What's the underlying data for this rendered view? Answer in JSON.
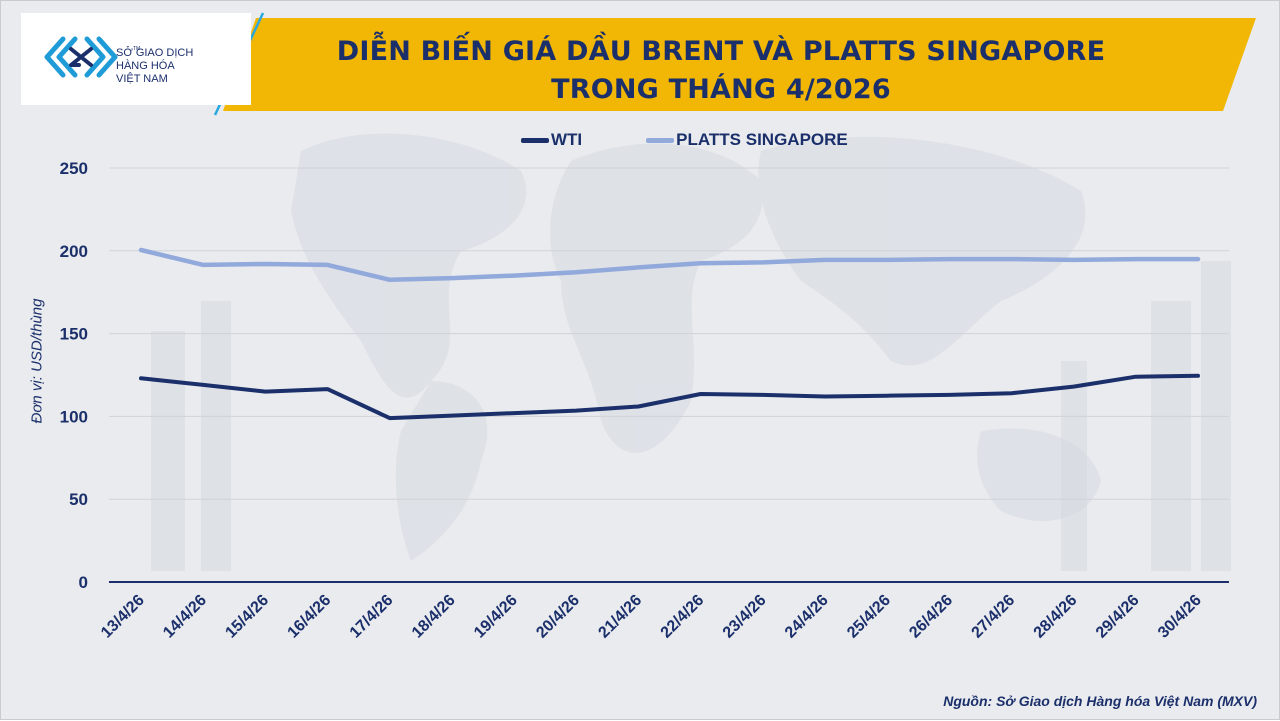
{
  "logo": {
    "line1": "SỞ GIAO DỊCH",
    "line2": "HÀNG HÓA",
    "line3": "VIỆT NAM",
    "tm": "TM"
  },
  "title": {
    "line1": "DIỄN BIẾN GIÁ DẦU BRENT VÀ PLATTS SINGAPORE",
    "line2": "TRONG THÁNG 4/2026"
  },
  "source": "Nguồn: Sở Giao dịch Hàng hóa Việt Nam (MXV)",
  "colors": {
    "banner": "#f2b705",
    "title": "#1b2f6b",
    "wti": "#1b2f6b",
    "platts": "#92a9dc",
    "axis": "#1b2f6b"
  },
  "chart_data": {
    "type": "line",
    "title": "DIỄN BIẾN GIÁ DẦU BRENT VÀ PLATTS SINGAPORE TRONG THÁNG 4/2026",
    "xlabel": "",
    "ylabel": "Đơn vị: USD/thùng",
    "ylim": [
      0,
      250
    ],
    "yticks": [
      0,
      50,
      100,
      150,
      200,
      250
    ],
    "grid": true,
    "legend_position": "top",
    "categories": [
      "13/4/26",
      "14/4/26",
      "15/4/26",
      "16/4/26",
      "17/4/26",
      "18/4/26",
      "19/4/26",
      "20/4/26",
      "21/4/26",
      "22/4/26",
      "23/4/26",
      "24/4/26",
      "25/4/26",
      "26/4/26",
      "27/4/26",
      "28/4/26",
      "29/4/26",
      "30/4/26"
    ],
    "series": [
      {
        "name": "WTI",
        "color": "#1b2f6b",
        "values": [
          123,
          119,
          115,
          116.5,
          99,
          100.5,
          102,
          103.5,
          106,
          113.5,
          113,
          112,
          112.5,
          113,
          114,
          118,
          124,
          124.5
        ]
      },
      {
        "name": "PLATTS SINGAPORE",
        "color": "#92a9dc",
        "values": [
          200.5,
          191.5,
          192,
          191.5,
          182.5,
          183.5,
          185,
          187,
          190,
          192.5,
          193,
          194.5,
          194.5,
          195,
          195,
          194.5,
          195,
          195
        ]
      }
    ]
  }
}
